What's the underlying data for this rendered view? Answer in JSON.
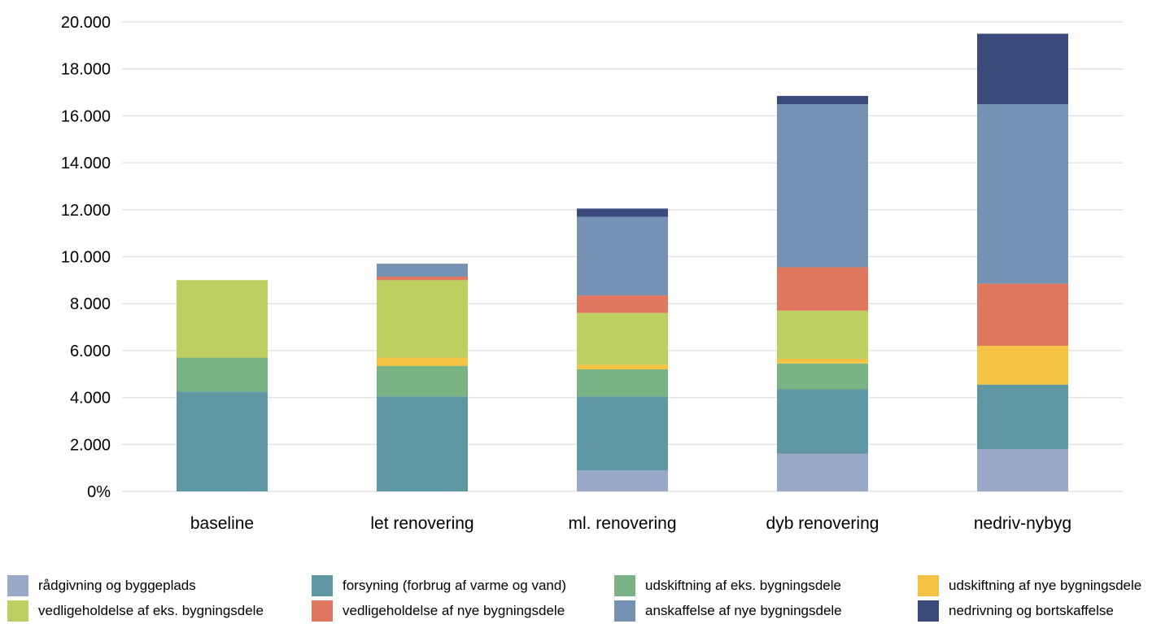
{
  "chart_data": {
    "type": "bar",
    "stacked": true,
    "title": "",
    "xlabel": "",
    "ylabel": "",
    "ylim": [
      0,
      20000
    ],
    "y_ticks": [
      "0%",
      "2.000",
      "4.000",
      "6.000",
      "8.000",
      "10.000",
      "12.000",
      "14.000",
      "16.000",
      "18.000",
      "20.000"
    ],
    "grid": true,
    "legend_position": "bottom",
    "categories": [
      "baseline",
      "let renovering",
      "ml. renovering",
      "dyb renovering",
      "nedriv-nybyg"
    ],
    "series": [
      {
        "name": "rådgivning og byggeplads",
        "color": "#9aa9c9",
        "values": [
          0,
          0,
          900,
          1600,
          1800
        ]
      },
      {
        "name": "forsyning (forbrug af varme og vand)",
        "color": "#5f98a2",
        "values": [
          4250,
          4050,
          3150,
          2750,
          2750
        ]
      },
      {
        "name": "udskiftning af eks. bygningsdele",
        "color": "#79b283",
        "values": [
          1450,
          1300,
          1150,
          1100,
          0
        ]
      },
      {
        "name": "udskiftning af nye bygningsdele",
        "color": "#f4c343",
        "values": [
          0,
          350,
          200,
          200,
          1650
        ]
      },
      {
        "name": "vedligeholdelse af eks. bygningsdele",
        "color": "#bdcf60",
        "values": [
          3300,
          3300,
          2200,
          2050,
          0
        ]
      },
      {
        "name": "vedligeholdelse af nye bygningsdele",
        "color": "#e0775f",
        "values": [
          0,
          150,
          750,
          1850,
          2650
        ]
      },
      {
        "name": "anskaffelse af nye bygningsdele",
        "color": "#7592b5",
        "values": [
          0,
          550,
          3350,
          6950,
          7650
        ]
      },
      {
        "name": "nedrivning og bortskaffelse",
        "color": "#3a4a7b",
        "values": [
          0,
          0,
          350,
          350,
          3000
        ]
      }
    ]
  }
}
